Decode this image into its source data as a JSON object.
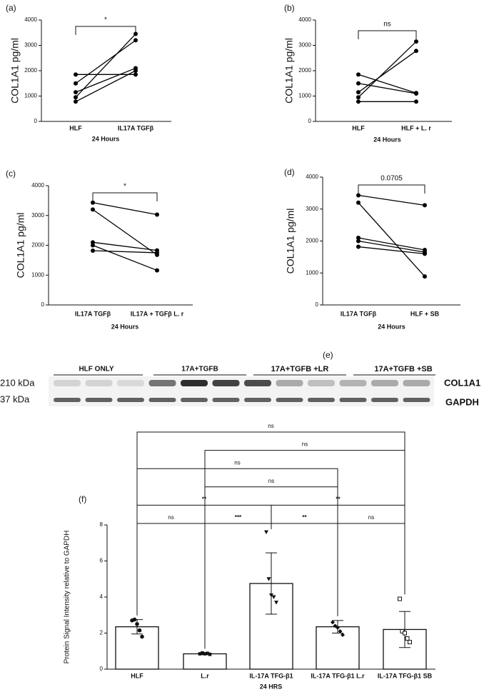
{
  "chart_data": [
    {
      "type": "line",
      "panel": "(a)",
      "categories": [
        "HLF",
        "IL17A TGFβ"
      ],
      "xlabel": "24 Hours",
      "ylabel": "COL1A1 pg/ml",
      "annotation": "*",
      "series": [
        {
          "color": "#000000",
          "values": [
            1850,
            1850
          ]
        },
        {
          "color": "#000000",
          "values": [
            1500,
            3200
          ]
        },
        {
          "color": "#000000",
          "values": [
            1150,
            2100
          ]
        },
        {
          "color": "#000000",
          "values": [
            950,
            3450
          ]
        },
        {
          "color": "#000000",
          "values": [
            780,
            2000
          ]
        }
      ],
      "ylim": [
        0,
        4000
      ],
      "yticks": [
        0,
        1000,
        2000,
        3000,
        4000
      ]
    },
    {
      "type": "line",
      "panel": "(b)",
      "categories": [
        "HLF",
        "HLF + L. r"
      ],
      "xlabel": "24 Hours",
      "ylabel": "COL1A1 pg/ml",
      "annotation": "ns",
      "series": [
        {
          "color": "#000000",
          "values": [
            1850,
            1120
          ]
        },
        {
          "color": "#000000",
          "values": [
            1500,
            1100
          ]
        },
        {
          "color": "#000000",
          "values": [
            1150,
            2780
          ]
        },
        {
          "color": "#000000",
          "values": [
            950,
            3150
          ]
        },
        {
          "color": "#000000",
          "values": [
            780,
            780
          ]
        }
      ],
      "ylim": [
        0,
        4000
      ],
      "yticks": [
        0,
        1000,
        2000,
        3000,
        4000
      ]
    },
    {
      "type": "line",
      "panel": "(c)",
      "categories": [
        "IL17A TGFβ",
        "IL17A + TGFβ L. r"
      ],
      "xlabel": "24 Hours",
      "ylabel": "COL1A1 pg/ml",
      "annotation": "*",
      "series": [
        {
          "color": "#000000",
          "values": [
            3430,
            3030
          ]
        },
        {
          "color": "#000000",
          "values": [
            3200,
            1680
          ]
        },
        {
          "color": "#000000",
          "values": [
            2100,
            1830
          ]
        },
        {
          "color": "#000000",
          "values": [
            2000,
            1160
          ]
        },
        {
          "color": "#000000",
          "values": [
            1820,
            1750
          ]
        }
      ],
      "ylim": [
        0,
        4000
      ],
      "yticks": [
        0,
        1000,
        2000,
        3000,
        4000
      ]
    },
    {
      "type": "line",
      "panel": "(d)",
      "categories": [
        "IL17A TGFβ",
        "HLF + SB"
      ],
      "xlabel": "24 Hours",
      "ylabel": "COL1A1 pg/ml",
      "annotation": "0.0705",
      "series": [
        {
          "color": "#000000",
          "values": [
            3430,
            3120
          ]
        },
        {
          "color": "#000000",
          "values": [
            3200,
            890
          ]
        },
        {
          "color": "#000000",
          "values": [
            2100,
            1720
          ]
        },
        {
          "color": "#000000",
          "values": [
            2000,
            1650
          ]
        },
        {
          "color": "#000000",
          "values": [
            1820,
            1600
          ]
        }
      ],
      "ylim": [
        0,
        4000
      ],
      "yticks": [
        0,
        1000,
        2000,
        3000,
        4000
      ]
    },
    {
      "type": "bar",
      "panel": "(f)",
      "categories": [
        "HLF",
        "L.r",
        "IL-17A TFG-β1",
        "IL-17A TFG-β1 L.r",
        "IL-17A TFG-β1 SB"
      ],
      "values": [
        2.35,
        0.85,
        4.75,
        2.35,
        2.2
      ],
      "errors": [
        0.4,
        0.05,
        1.7,
        0.35,
        1.0
      ],
      "points": [
        [
          2.7,
          2.75,
          2.5,
          2.15,
          1.8
        ],
        [
          0.85,
          0.9,
          0.85,
          0.88,
          0.82
        ],
        [
          7.6,
          5.0,
          4.1,
          4.0,
          3.7
        ],
        [
          2.6,
          2.4,
          2.3,
          2.1,
          1.9
        ],
        [
          3.9,
          2.1,
          2.0,
          1.7,
          1.5
        ]
      ],
      "markers": [
        "circle",
        "square",
        "triangle",
        "diamond",
        "open-square"
      ],
      "color": "#ffffff",
      "xlabel": "24 HRS",
      "ylabel": "Protein Signal Intensity relative to GAPDH",
      "ylim": [
        0,
        8
      ],
      "yticks": [
        0,
        2,
        4,
        6,
        8
      ],
      "comparisons": [
        {
          "between": [
            0,
            1
          ],
          "label": "ns"
        },
        {
          "between": [
            1,
            2
          ],
          "label": "***"
        },
        {
          "between": [
            2,
            3
          ],
          "label": "**"
        },
        {
          "between": [
            3,
            4
          ],
          "label": "ns"
        },
        {
          "between": [
            0,
            2
          ],
          "label": "**"
        },
        {
          "between": [
            2,
            4
          ],
          "label": "**"
        },
        {
          "between": [
            1,
            3
          ],
          "label": "ns"
        },
        {
          "between": [
            0,
            3
          ],
          "label": "ns"
        },
        {
          "between": [
            1,
            4
          ],
          "label": "ns"
        },
        {
          "between": [
            0,
            4
          ],
          "label": "ns"
        }
      ]
    }
  ],
  "blot": {
    "panel": "(e)",
    "groups": [
      "HLF ONLY",
      "17A+TGFB",
      "17A+TGFB +LR",
      "17A+TGFB +SB"
    ],
    "rows": [
      {
        "size": "210 kDa",
        "name": "COL1A1"
      },
      {
        "size": "37 kDa",
        "name": "GAPDH"
      }
    ]
  }
}
